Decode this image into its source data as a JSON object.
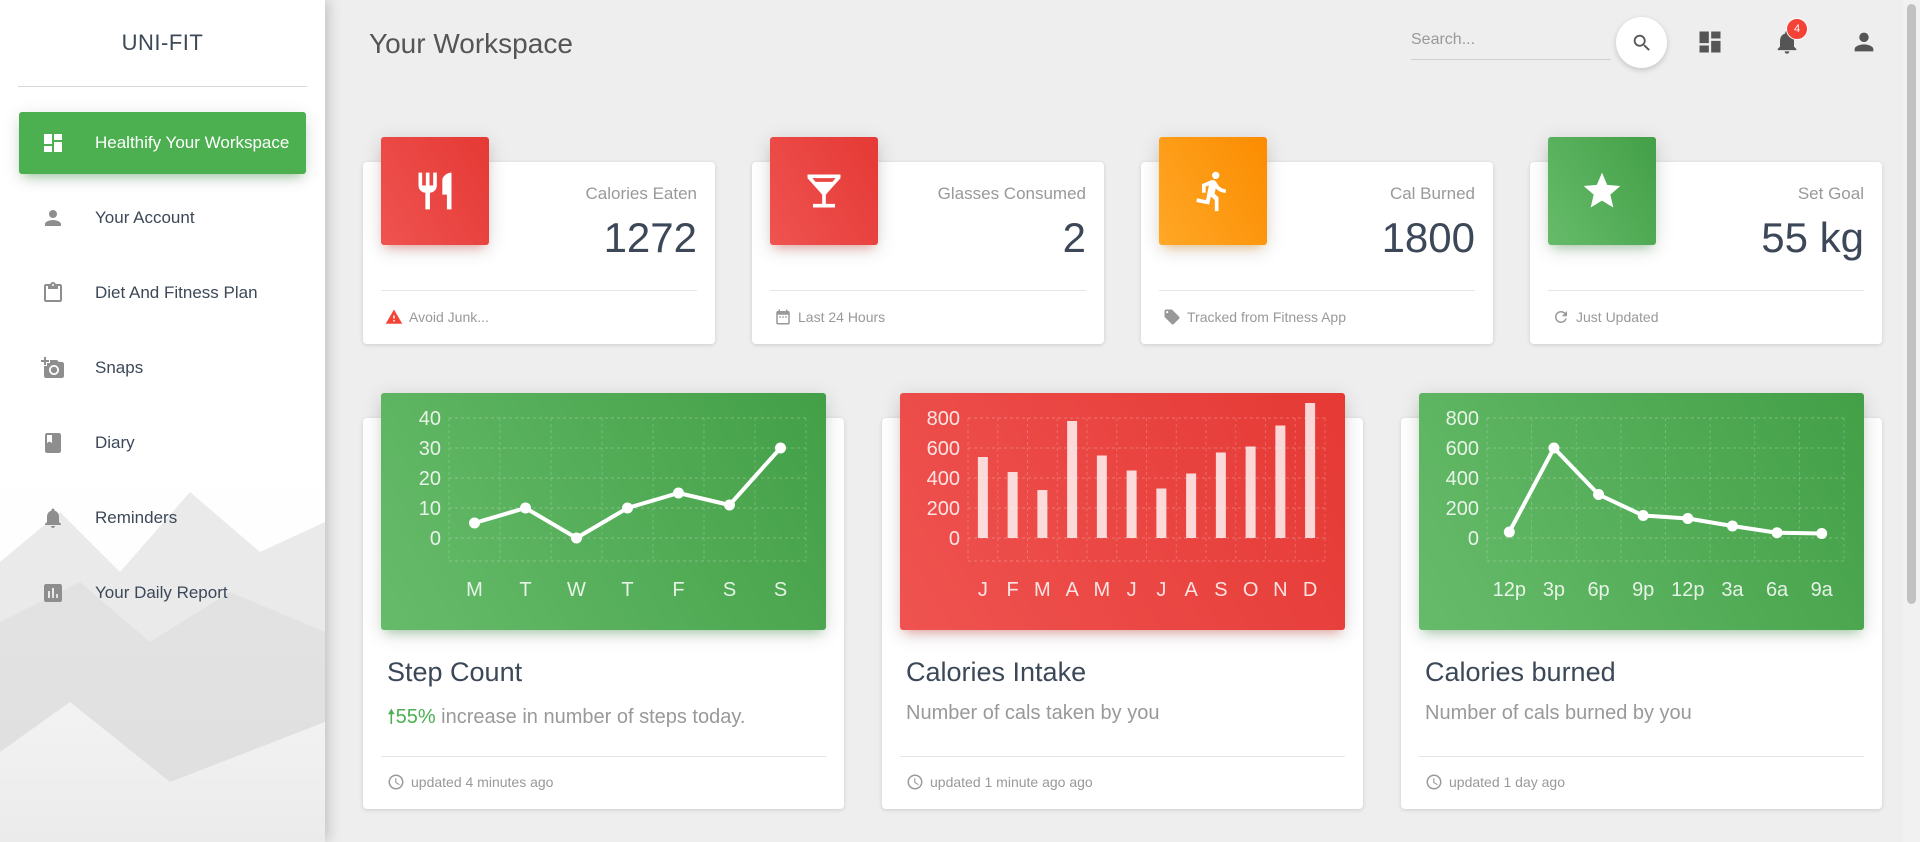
{
  "app": {
    "logo": "UNI-FIT"
  },
  "header": {
    "title": "Your Workspace",
    "search_placeholder": "Search...",
    "notification_count": "4"
  },
  "sidebar": {
    "items": [
      {
        "label": "Healthify Your Workspace",
        "icon": "dashboard-icon",
        "active": true
      },
      {
        "label": "Your Account",
        "icon": "person-icon"
      },
      {
        "label": "Diet And Fitness Plan",
        "icon": "clipboard-icon"
      },
      {
        "label": "Snaps",
        "icon": "camera-icon"
      },
      {
        "label": "Diary",
        "icon": "book-icon"
      },
      {
        "label": "Reminders",
        "icon": "bell-icon"
      },
      {
        "label": "Your Daily Report",
        "icon": "chart-icon"
      }
    ]
  },
  "stats": [
    {
      "label": "Calories Eaten",
      "value": "1272",
      "footer": "Avoid Junk...",
      "icon": "cutlery-icon",
      "color": "#e53935"
    },
    {
      "label": "Glasses Consumed",
      "value": "2",
      "footer": "Last 24 Hours",
      "icon": "glass-icon",
      "color": "#e53935"
    },
    {
      "label": "Cal Burned",
      "value": "1800",
      "footer": "Tracked from Fitness App",
      "icon": "runner-icon",
      "color": "#fb8c00"
    },
    {
      "label": "Set Goal",
      "value": "55 kg",
      "footer": "Just Updated",
      "icon": "star-icon",
      "color": "#43a047"
    }
  ],
  "charts": [
    {
      "title": "Step Count",
      "subtitle_highlight": "55%",
      "subtitle": " increase in number of steps today.",
      "footer": "updated 4 minutes ago"
    },
    {
      "title": "Calories Intake",
      "subtitle": "Number of cals taken by you",
      "footer": "updated 1 minute ago ago"
    },
    {
      "title": "Calories burned",
      "subtitle": "Number of cals burned by you",
      "footer": "updated 1 day ago"
    }
  ],
  "chart_data": [
    {
      "type": "line",
      "categories": [
        "M",
        "T",
        "W",
        "T",
        "F",
        "S",
        "S"
      ],
      "values": [
        5,
        10,
        0,
        10,
        15,
        11,
        30
      ],
      "ylim": [
        0,
        40
      ],
      "yticks": [
        "0",
        "10",
        "20",
        "30",
        "40"
      ],
      "grid": true,
      "color": "#4caf50"
    },
    {
      "type": "bar",
      "categories": [
        "J",
        "F",
        "M",
        "A",
        "M",
        "J",
        "J",
        "A",
        "S",
        "O",
        "N",
        "D"
      ],
      "values": [
        540,
        440,
        320,
        780,
        550,
        450,
        330,
        430,
        570,
        610,
        750,
        900
      ],
      "ylim": [
        0,
        800
      ],
      "yticks": [
        "0",
        "200",
        "400",
        "600",
        "800"
      ],
      "grid": true,
      "color": "#f44336"
    },
    {
      "type": "line",
      "categories": [
        "12p",
        "3p",
        "6p",
        "9p",
        "12p",
        "3a",
        "6a",
        "9a"
      ],
      "values": [
        40,
        600,
        290,
        150,
        130,
        80,
        35,
        30
      ],
      "ylim": [
        0,
        800
      ],
      "yticks": [
        "0",
        "200",
        "400",
        "600",
        "800"
      ],
      "grid": true,
      "color": "#4caf50"
    }
  ]
}
